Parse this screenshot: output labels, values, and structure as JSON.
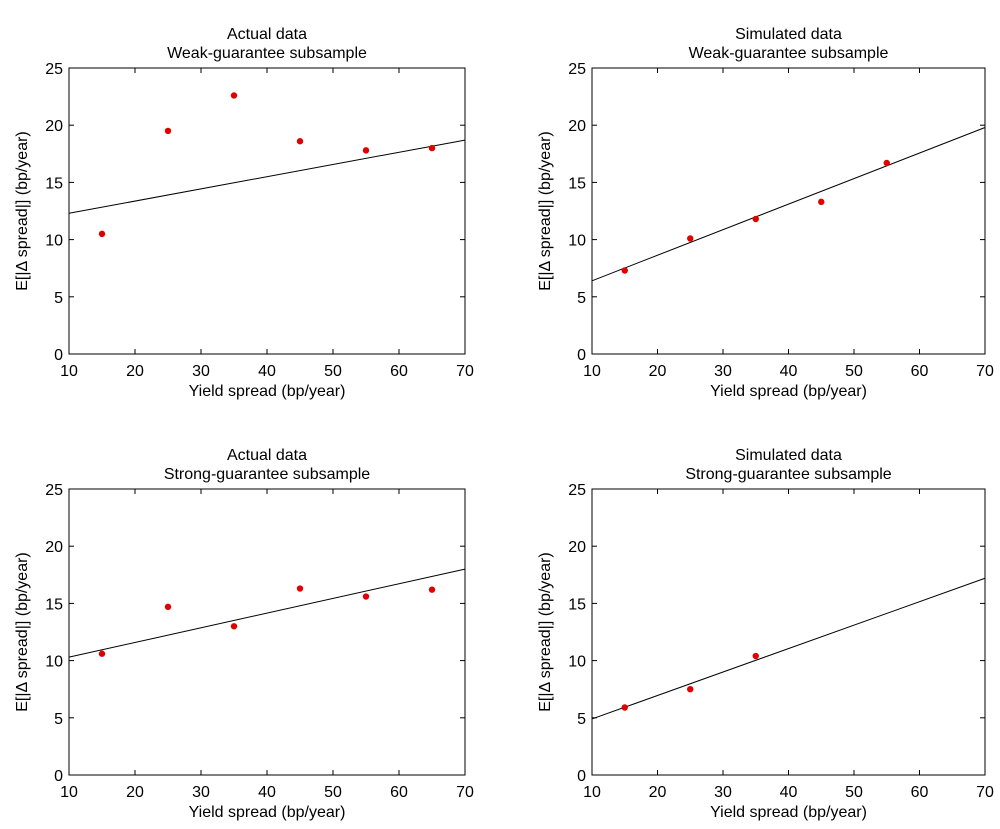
{
  "chart_data": [
    {
      "type": "scatter",
      "title": "Actual data",
      "subtitle": "Weak-guarantee subsample",
      "xlabel": "Yield spread (bp/year)",
      "ylabel": "E[|Δ spread|]  (bp/year)",
      "xlim": [
        10,
        70
      ],
      "ylim": [
        0,
        25
      ],
      "xticks": [
        "10",
        "20",
        "30",
        "40",
        "50",
        "60",
        "70"
      ],
      "yticks": [
        "0",
        "5",
        "10",
        "15",
        "20",
        "25"
      ],
      "grid": false,
      "point_color": "#e00000",
      "x": [
        15,
        25,
        35,
        45,
        55,
        65
      ],
      "y": [
        10.5,
        19.5,
        22.6,
        18.6,
        17.8,
        18.0
      ],
      "fit_line": {
        "x": [
          10,
          70
        ],
        "y": [
          12.3,
          18.7
        ]
      }
    },
    {
      "type": "scatter",
      "title": "Simulated data",
      "subtitle": "Weak-guarantee subsample",
      "xlabel": "Yield spread (bp/year)",
      "ylabel": "E[|Δ spread|]  (bp/year)",
      "xlim": [
        10,
        70
      ],
      "ylim": [
        0,
        25
      ],
      "xticks": [
        "10",
        "20",
        "30",
        "40",
        "50",
        "60",
        "70"
      ],
      "yticks": [
        "0",
        "5",
        "10",
        "15",
        "20",
        "25"
      ],
      "grid": false,
      "point_color": "#e00000",
      "x": [
        15,
        25,
        35,
        45,
        55
      ],
      "y": [
        7.3,
        10.1,
        11.8,
        13.3,
        16.7
      ],
      "fit_line": {
        "x": [
          10,
          70
        ],
        "y": [
          6.4,
          19.8
        ]
      }
    },
    {
      "type": "scatter",
      "title": "Actual data",
      "subtitle": "Strong-guarantee subsample",
      "xlabel": "Yield spread (bp/year)",
      "ylabel": "E[|Δ spread|]  (bp/year)",
      "xlim": [
        10,
        70
      ],
      "ylim": [
        0,
        25
      ],
      "xticks": [
        "10",
        "20",
        "30",
        "40",
        "50",
        "60",
        "70"
      ],
      "yticks": [
        "0",
        "5",
        "10",
        "15",
        "20",
        "25"
      ],
      "grid": false,
      "point_color": "#e00000",
      "x": [
        15,
        25,
        35,
        45,
        55,
        65
      ],
      "y": [
        10.6,
        14.7,
        13.0,
        16.3,
        15.6,
        16.2
      ],
      "fit_line": {
        "x": [
          10,
          70
        ],
        "y": [
          10.3,
          18.0
        ]
      }
    },
    {
      "type": "scatter",
      "title": "Simulated data",
      "subtitle": "Strong-guarantee subsample",
      "xlabel": "Yield spread (bp/year)",
      "ylabel": "E[|Δ spread|]  (bp/year)",
      "xlim": [
        10,
        70
      ],
      "ylim": [
        0,
        25
      ],
      "xticks": [
        "10",
        "20",
        "30",
        "40",
        "50",
        "60",
        "70"
      ],
      "yticks": [
        "0",
        "5",
        "10",
        "15",
        "20",
        "25"
      ],
      "grid": false,
      "point_color": "#e00000",
      "x": [
        15,
        25,
        35
      ],
      "y": [
        5.9,
        7.5,
        10.4
      ],
      "fit_line": {
        "x": [
          10,
          70
        ],
        "y": [
          4.9,
          17.2
        ]
      }
    }
  ]
}
